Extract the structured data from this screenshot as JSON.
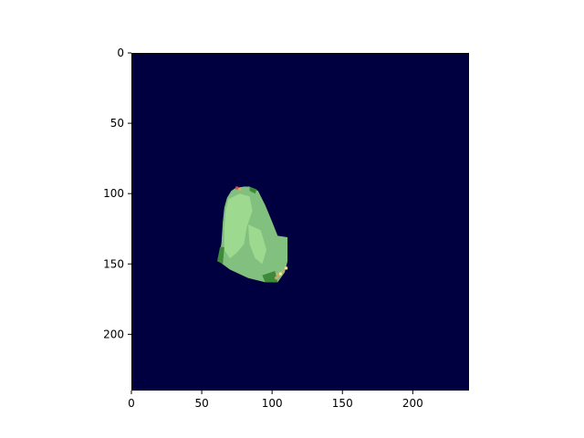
{
  "chart_data": {
    "type": "heatmap",
    "title": "",
    "xlabel": "",
    "ylabel": "",
    "xlim": [
      0,
      240
    ],
    "ylim": [
      240,
      0
    ],
    "y_axis_inverted": true,
    "grid": false,
    "legend": "none",
    "x_ticks": [
      0,
      50,
      100,
      150,
      200
    ],
    "y_ticks": [
      0,
      50,
      100,
      150,
      200
    ],
    "x_tick_labels": [
      "0",
      "50",
      "100",
      "150",
      "200"
    ],
    "y_tick_labels": [
      "0",
      "50",
      "100",
      "150",
      "200"
    ],
    "colors": {
      "background": "#000040",
      "region_main": "#82c07f",
      "region_light": "#9dd98f",
      "region_dark": "#3f8a3a",
      "hotspot_orange": "#e3a15a",
      "hotspot_yellow": "#f1e3a0",
      "hotspot_red": "#c25a4d"
    },
    "regions": [
      {
        "name": "object",
        "level": "main",
        "outline": [
          [
            74,
            96
          ],
          [
            80,
            95
          ],
          [
            84,
            95
          ],
          [
            90,
            98
          ],
          [
            95,
            108
          ],
          [
            100,
            120
          ],
          [
            104,
            130
          ],
          [
            111,
            131
          ],
          [
            111,
            148
          ],
          [
            109,
            156
          ],
          [
            104,
            163
          ],
          [
            95,
            163
          ],
          [
            83,
            160
          ],
          [
            70,
            154
          ],
          [
            62,
            148
          ],
          [
            64,
            135
          ],
          [
            65,
            120
          ],
          [
            66,
            110
          ],
          [
            68,
            103
          ],
          [
            71,
            98
          ]
        ]
      },
      {
        "name": "object-light-area",
        "level": "light",
        "outline": [
          [
            69,
            104
          ],
          [
            77,
            100
          ],
          [
            84,
            102
          ],
          [
            86,
            112
          ],
          [
            82,
            124
          ],
          [
            80,
            136
          ],
          [
            75,
            142
          ],
          [
            70,
            146
          ],
          [
            66,
            140
          ],
          [
            66,
            124
          ],
          [
            67,
            112
          ]
        ]
      },
      {
        "name": "object-light-streak",
        "level": "light",
        "outline": [
          [
            83,
            122
          ],
          [
            92,
            126
          ],
          [
            96,
            140
          ],
          [
            93,
            150
          ],
          [
            88,
            146
          ],
          [
            84,
            136
          ]
        ]
      },
      {
        "name": "left-edge-dark",
        "level": "dark",
        "outline": [
          [
            63,
            138
          ],
          [
            66,
            138
          ],
          [
            65,
            150
          ],
          [
            61,
            148
          ]
        ]
      },
      {
        "name": "lower-edge-dark",
        "level": "dark",
        "outline": [
          [
            93,
            158
          ],
          [
            102,
            155
          ],
          [
            104,
            163
          ],
          [
            95,
            163
          ]
        ]
      },
      {
        "name": "top-right-dark",
        "level": "dark",
        "outline": [
          [
            84,
            95
          ],
          [
            89,
            97
          ],
          [
            88,
            100
          ],
          [
            84,
            98
          ]
        ]
      }
    ],
    "hotspots": [
      {
        "x": 75,
        "y": 96,
        "level": "red"
      },
      {
        "x": 77,
        "y": 97,
        "level": "orange"
      },
      {
        "x": 104,
        "y": 158,
        "level": "orange"
      },
      {
        "x": 106,
        "y": 157,
        "level": "yellow"
      },
      {
        "x": 108,
        "y": 155,
        "level": "orange"
      },
      {
        "x": 110,
        "y": 153,
        "level": "yellow"
      },
      {
        "x": 103,
        "y": 160,
        "level": "orange"
      }
    ]
  }
}
